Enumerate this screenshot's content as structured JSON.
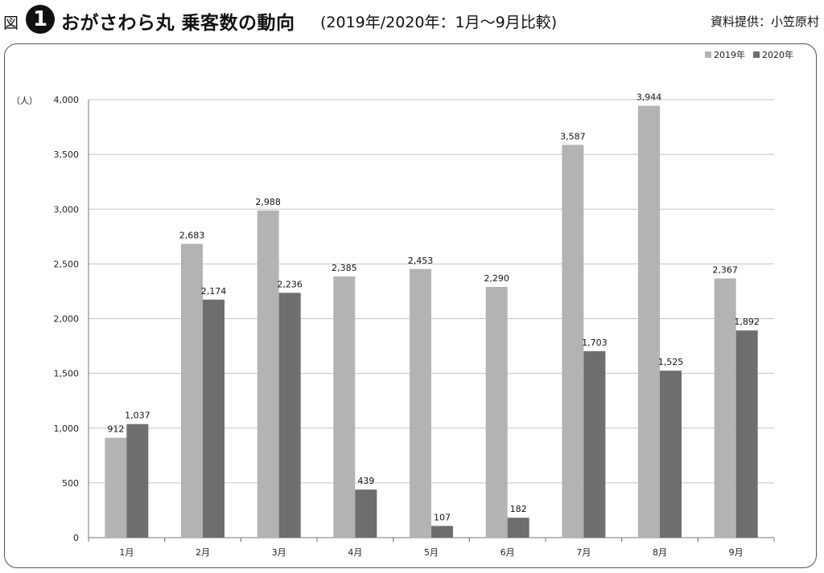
{
  "header": {
    "fig_label": "図",
    "fig_number": "1",
    "title": "おがさわら丸 乗客数の動向",
    "subtitle": "(2019年/2020年：1月～9月比較)",
    "source": "資料提供：小笠原村"
  },
  "chart_data": {
    "type": "bar",
    "title": "おがさわら丸 乗客数の動向",
    "ylabel": "（人）",
    "xlabel": "",
    "categories": [
      "1月",
      "2月",
      "3月",
      "4月",
      "5月",
      "6月",
      "7月",
      "8月",
      "9月"
    ],
    "series": [
      {
        "name": "2019年",
        "color": "#b3b3b3",
        "values": [
          912,
          2683,
          2988,
          2385,
          2453,
          2290,
          3587,
          3944,
          2367
        ]
      },
      {
        "name": "2020年",
        "color": "#6e6e6e",
        "values": [
          1037,
          2174,
          2236,
          439,
          107,
          182,
          1703,
          1525,
          1892
        ]
      }
    ],
    "ylim": [
      0,
      4000
    ],
    "yticks": [
      0,
      500,
      1000,
      1500,
      2000,
      2500,
      3000,
      3500,
      4000
    ],
    "ytick_labels": [
      "0",
      "500",
      "1,000",
      "1,500",
      "2,000",
      "2,500",
      "3,000",
      "3,500",
      "4,000"
    ],
    "grid": true,
    "legend": "top-right"
  }
}
